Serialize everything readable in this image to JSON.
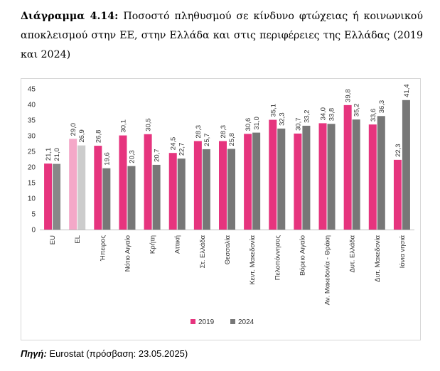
{
  "caption": {
    "label": "Διάγραμμα 4.14:",
    "text": "Ποσοστό πληθυσμού σε κίνδυνο φτώχειας ή κοινωνικού αποκλεισμού στην ΕΕ, στην Ελλάδα και στις περιφέρειες της Ελλάδας (2019 και 2024)"
  },
  "source": {
    "label": "Πηγή:",
    "text": "Eurostat (πρόσβαση: 23.05.2025)"
  },
  "chart_data": {
    "type": "bar",
    "title": "",
    "xlabel": "",
    "ylabel": "",
    "ylim": [
      0,
      45
    ],
    "yticks": [
      0,
      5,
      10,
      15,
      20,
      25,
      30,
      35,
      40,
      45
    ],
    "grid": false,
    "legend_position": "bottom",
    "categories": [
      "EU",
      "EL",
      "Ήπειρος",
      "Νότιο Αιγαίο",
      "Κρήτη",
      "Αττική",
      "Στ. Ελλάδα",
      "Θεσσαλία",
      "Κεντ. Μακεδονία",
      "Πελοπόννησος",
      "Βόρειο Αιγαίο",
      "Αν. Μακεδονία - Θράκη",
      "Δυτ. Ελλάδα",
      "Δυτ. Μακεδονία",
      "Ιόνια νησιά"
    ],
    "series": [
      {
        "name": "2019",
        "color": "#e6347e",
        "values": [
          21.1,
          29.0,
          26.8,
          30.1,
          30.5,
          24.5,
          28.3,
          28.3,
          30.6,
          35.1,
          30.7,
          34.0,
          39.8,
          33.6,
          22.3
        ]
      },
      {
        "name": "2024",
        "color": "#777777",
        "values": [
          21.0,
          26.9,
          19.6,
          20.3,
          20.7,
          22.7,
          25.7,
          25.8,
          31.0,
          32.3,
          33.2,
          33.8,
          35.2,
          36.3,
          41.4
        ]
      }
    ],
    "highlight_colors": {
      "EU": [
        "#e6347e",
        "#888888"
      ],
      "EL": [
        "#f4a8c8",
        "#cccccc"
      ]
    }
  }
}
